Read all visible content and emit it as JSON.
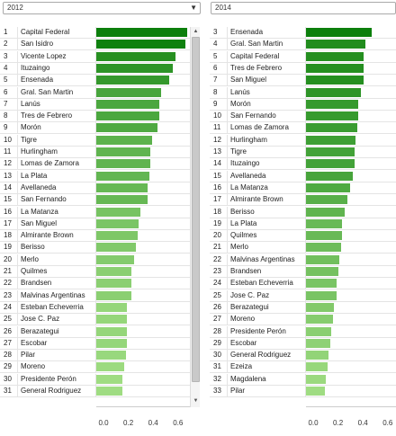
{
  "left": {
    "year": "2012",
    "rows": [
      {
        "rank": "1",
        "name": "Capital Federal",
        "value": 0.62
      },
      {
        "rank": "2",
        "name": "San Isidro",
        "value": 0.61
      },
      {
        "rank": "3",
        "name": "Vicente Lopez",
        "value": 0.54
      },
      {
        "rank": "4",
        "name": "Ituzaingo",
        "value": 0.52
      },
      {
        "rank": "5",
        "name": "Ensenada",
        "value": 0.5
      },
      {
        "rank": "6",
        "name": "Gral. San Martin",
        "value": 0.44
      },
      {
        "rank": "7",
        "name": "Lanús",
        "value": 0.43
      },
      {
        "rank": "8",
        "name": "Tres de Febrero",
        "value": 0.43
      },
      {
        "rank": "9",
        "name": "Morón",
        "value": 0.42
      },
      {
        "rank": "10",
        "name": "Tigre",
        "value": 0.38
      },
      {
        "rank": "11",
        "name": "Hurlingham",
        "value": 0.37
      },
      {
        "rank": "12",
        "name": "Lomas de Zamora",
        "value": 0.37
      },
      {
        "rank": "13",
        "name": "La Plata",
        "value": 0.36
      },
      {
        "rank": "14",
        "name": "Avellaneda",
        "value": 0.35
      },
      {
        "rank": "15",
        "name": "San Fernando",
        "value": 0.35
      },
      {
        "rank": "16",
        "name": "La Matanza",
        "value": 0.3
      },
      {
        "rank": "17",
        "name": "San Miguel",
        "value": 0.29
      },
      {
        "rank": "18",
        "name": "Almirante Brown",
        "value": 0.28
      },
      {
        "rank": "19",
        "name": "Berisso",
        "value": 0.27
      },
      {
        "rank": "20",
        "name": "Merlo",
        "value": 0.26
      },
      {
        "rank": "21",
        "name": "Quilmes",
        "value": 0.24
      },
      {
        "rank": "22",
        "name": "Brandsen",
        "value": 0.24
      },
      {
        "rank": "23",
        "name": "Malvinas Argentinas",
        "value": 0.24
      },
      {
        "rank": "24",
        "name": "Esteban Echeverria",
        "value": 0.21
      },
      {
        "rank": "25",
        "name": "Jose C. Paz",
        "value": 0.21
      },
      {
        "rank": "26",
        "name": "Berazategui",
        "value": 0.21
      },
      {
        "rank": "27",
        "name": "Escobar",
        "value": 0.21
      },
      {
        "rank": "28",
        "name": "Pilar",
        "value": 0.2
      },
      {
        "rank": "29",
        "name": "Moreno",
        "value": 0.19
      },
      {
        "rank": "30",
        "name": "Presidente Perón",
        "value": 0.18
      },
      {
        "rank": "31",
        "name": "General Rodriguez",
        "value": 0.18
      }
    ],
    "ticks": [
      "0.0",
      "0.2",
      "0.4",
      "0.6"
    ]
  },
  "right": {
    "year": "2014",
    "rows": [
      {
        "rank": "3",
        "name": "Ensenada",
        "value": 0.49
      },
      {
        "rank": "4",
        "name": "Gral. San Martin",
        "value": 0.44
      },
      {
        "rank": "5",
        "name": "Capital Federal",
        "value": 0.43
      },
      {
        "rank": "6",
        "name": "Tres de Febrero",
        "value": 0.43
      },
      {
        "rank": "7",
        "name": "San Miguel",
        "value": 0.43
      },
      {
        "rank": "8",
        "name": "Lanús",
        "value": 0.41
      },
      {
        "rank": "9",
        "name": "Morón",
        "value": 0.39
      },
      {
        "rank": "10",
        "name": "San Fernando",
        "value": 0.39
      },
      {
        "rank": "11",
        "name": "Lomas de Zamora",
        "value": 0.38
      },
      {
        "rank": "12",
        "name": "Hurlingham",
        "value": 0.37
      },
      {
        "rank": "13",
        "name": "Tigre",
        "value": 0.36
      },
      {
        "rank": "14",
        "name": "Ituzaingo",
        "value": 0.36
      },
      {
        "rank": "15",
        "name": "Avellaneda",
        "value": 0.35
      },
      {
        "rank": "16",
        "name": "La Matanza",
        "value": 0.33
      },
      {
        "rank": "17",
        "name": "Almirante Brown",
        "value": 0.31
      },
      {
        "rank": "18",
        "name": "Berisso",
        "value": 0.29
      },
      {
        "rank": "19",
        "name": "La Plata",
        "value": 0.27
      },
      {
        "rank": "20",
        "name": "Quilmes",
        "value": 0.27
      },
      {
        "rank": "21",
        "name": "Merlo",
        "value": 0.26
      },
      {
        "rank": "22",
        "name": "Malvinas Argentinas",
        "value": 0.25
      },
      {
        "rank": "23",
        "name": "Brandsen",
        "value": 0.24
      },
      {
        "rank": "24",
        "name": "Esteban Echeverria",
        "value": 0.23
      },
      {
        "rank": "25",
        "name": "Jose C. Paz",
        "value": 0.23
      },
      {
        "rank": "26",
        "name": "Berazategui",
        "value": 0.21
      },
      {
        "rank": "27",
        "name": "Moreno",
        "value": 0.2
      },
      {
        "rank": "28",
        "name": "Presidente Perón",
        "value": 0.19
      },
      {
        "rank": "29",
        "name": "Escobar",
        "value": 0.18
      },
      {
        "rank": "30",
        "name": "General Rodriguez",
        "value": 0.17
      },
      {
        "rank": "31",
        "name": "Ezeiza",
        "value": 0.16
      },
      {
        "rank": "32",
        "name": "Magdalena",
        "value": 0.15
      },
      {
        "rank": "33",
        "name": "Pilar",
        "value": 0.14
      }
    ],
    "ticks": [
      "0.0",
      "0.2",
      "0.4",
      "0.6"
    ]
  },
  "colors": {
    "dark": "#0c7f0c",
    "light": "#9fdc82"
  },
  "icons": {
    "dropdown": "caret-down-icon",
    "scroll_up": "arrow-up-icon",
    "scroll_down": "arrow-down-icon"
  }
}
